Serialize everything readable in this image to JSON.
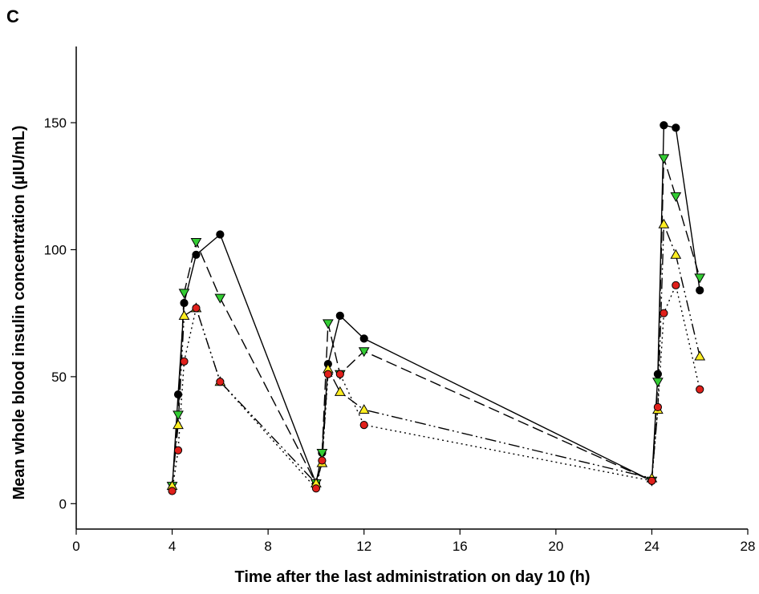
{
  "chart_data": {
    "type": "line",
    "panel_label": "C",
    "xlabel": "Time after the last administration on day 10 (h)",
    "ylabel": "Mean whole blood insulin concentration (µIU/mL)",
    "xlim": [
      0,
      28
    ],
    "ylim": [
      -10,
      180
    ],
    "xticks": [
      0,
      4,
      8,
      12,
      16,
      20,
      24,
      28
    ],
    "yticks": [
      0,
      50,
      100,
      150
    ],
    "grid": false,
    "legend": "none",
    "series": [
      {
        "marker": "circle",
        "color": "#000000",
        "line_style": "solid",
        "points": [
          [
            4,
            6
          ],
          [
            4.25,
            43
          ],
          [
            4.5,
            79
          ],
          [
            5,
            98
          ],
          [
            6,
            106
          ],
          [
            10,
            8
          ],
          [
            10.25,
            20
          ],
          [
            10.5,
            55
          ],
          [
            11,
            74
          ],
          [
            12,
            65
          ],
          [
            24,
            9
          ],
          [
            24.25,
            51
          ],
          [
            24.5,
            149
          ],
          [
            25,
            148
          ],
          [
            26,
            84
          ]
        ]
      },
      {
        "marker": "triangle-down",
        "color": "#33cc33",
        "line_style": "dashed",
        "points": [
          [
            4,
            7
          ],
          [
            4.25,
            35
          ],
          [
            4.5,
            83
          ],
          [
            5,
            103
          ],
          [
            6,
            81
          ],
          [
            10,
            8
          ],
          [
            10.25,
            20
          ],
          [
            10.5,
            71
          ],
          [
            11,
            51
          ],
          [
            12,
            60
          ],
          [
            24,
            9
          ],
          [
            24.25,
            48
          ],
          [
            24.5,
            136
          ],
          [
            25,
            121
          ],
          [
            26,
            89
          ]
        ]
      },
      {
        "marker": "triangle-up",
        "color": "#ffee22",
        "line_style": "dash-dot-dot",
        "points": [
          [
            4,
            7
          ],
          [
            4.25,
            31
          ],
          [
            4.5,
            74
          ],
          [
            5,
            77
          ],
          [
            6,
            48
          ],
          [
            10,
            8
          ],
          [
            10.25,
            16
          ],
          [
            10.5,
            53
          ],
          [
            11,
            44
          ],
          [
            12,
            37
          ],
          [
            24,
            10
          ],
          [
            24.25,
            37
          ],
          [
            24.5,
            110
          ],
          [
            25,
            98
          ],
          [
            26,
            58
          ]
        ]
      },
      {
        "marker": "circle",
        "color": "#e0201b",
        "line_style": "dotted",
        "points": [
          [
            4,
            5
          ],
          [
            4.25,
            21
          ],
          [
            4.5,
            56
          ],
          [
            5,
            77
          ],
          [
            6,
            48
          ],
          [
            10,
            6
          ],
          [
            10.25,
            17
          ],
          [
            10.5,
            51
          ],
          [
            11,
            51
          ],
          [
            12,
            31
          ],
          [
            24,
            9
          ],
          [
            24.25,
            38
          ],
          [
            24.5,
            75
          ],
          [
            25,
            86
          ],
          [
            26,
            45
          ]
        ]
      }
    ]
  }
}
